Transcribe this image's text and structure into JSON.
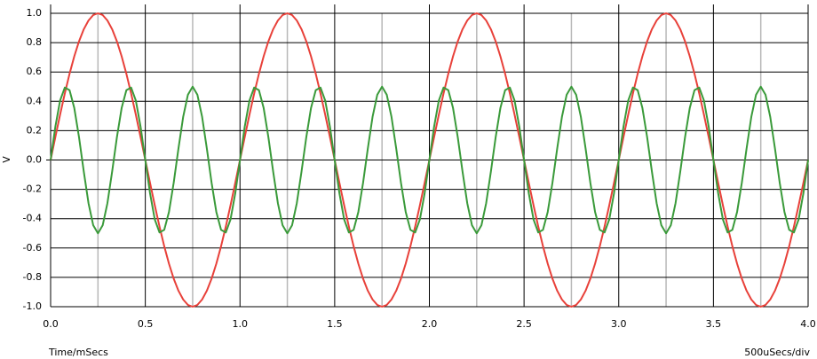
{
  "chart_data": {
    "type": "line",
    "y_label": "V",
    "x_label": "Time/mSecs",
    "x_scale_label": "500uSecs/div",
    "xlim": [
      0,
      4
    ],
    "ylim": [
      -1,
      1
    ],
    "xticks": [
      {
        "value": 0,
        "label": "0.0"
      },
      0.5,
      {
        "value": 1,
        "label": "1.0"
      },
      1.5,
      {
        "value": 2,
        "label": "2.0"
      },
      2.5,
      {
        "value": 3,
        "label": "3.0"
      },
      3.5,
      {
        "value": 4,
        "label": "4.0"
      }
    ],
    "xminorticks": [
      0.25,
      0.75,
      1.25,
      1.75,
      2.25,
      2.75,
      3.25,
      3.75
    ],
    "yticks": [
      {
        "value": -1,
        "label": "-1.0"
      },
      -0.8,
      -0.6,
      -0.4,
      -0.2,
      {
        "value": 0,
        "label": "0.0"
      },
      0.2,
      0.4,
      0.6,
      0.8,
      {
        "value": 1,
        "label": "1.0"
      }
    ],
    "grid": true,
    "x": [
      0,
      0.025,
      0.05,
      0.075,
      0.1,
      0.125,
      0.15,
      0.175,
      0.2,
      0.225,
      0.25,
      0.275,
      0.3,
      0.325,
      0.35,
      0.375,
      0.4,
      0.425,
      0.45,
      0.475,
      0.5,
      0.525,
      0.55,
      0.575,
      0.6,
      0.625,
      0.65,
      0.675,
      0.7,
      0.725,
      0.75,
      0.775,
      0.8,
      0.825,
      0.85,
      0.875,
      0.9,
      0.925,
      0.95,
      0.975,
      1,
      1.025,
      1.05,
      1.075,
      1.1,
      1.125,
      1.15,
      1.175,
      1.2,
      1.225,
      1.25,
      1.275,
      1.3,
      1.325,
      1.35,
      1.375,
      1.4,
      1.425,
      1.45,
      1.475,
      1.5,
      1.525,
      1.55,
      1.575,
      1.6,
      1.625,
      1.65,
      1.675,
      1.7,
      1.725,
      1.75,
      1.775,
      1.8,
      1.825,
      1.85,
      1.875,
      1.9,
      1.925,
      1.95,
      1.975,
      2,
      2.025,
      2.05,
      2.075,
      2.1,
      2.125,
      2.15,
      2.175,
      2.2,
      2.225,
      2.25,
      2.275,
      2.3,
      2.325,
      2.35,
      2.375,
      2.4,
      2.425,
      2.45,
      2.475,
      2.5,
      2.525,
      2.55,
      2.575,
      2.6,
      2.625,
      2.65,
      2.675,
      2.7,
      2.725,
      2.75,
      2.775,
      2.8,
      2.825,
      2.85,
      2.875,
      2.9,
      2.925,
      2.95,
      2.975,
      3,
      3.025,
      3.05,
      3.075,
      3.1,
      3.125,
      3.15,
      3.175,
      3.2,
      3.225,
      3.25,
      3.275,
      3.3,
      3.325,
      3.35,
      3.375,
      3.4,
      3.425,
      3.45,
      3.475,
      3.5,
      3.525,
      3.55,
      3.575,
      3.6,
      3.625,
      3.65,
      3.675,
      3.7,
      3.725,
      3.75,
      3.775,
      3.8,
      3.825,
      3.85,
      3.875,
      3.9,
      3.925,
      3.95,
      3.975,
      4
    ],
    "series": [
      {
        "color": "#e8413a",
        "values": [
          0,
          0.156,
          0.309,
          0.454,
          0.588,
          0.707,
          0.809,
          0.891,
          0.951,
          0.988,
          1,
          0.988,
          0.951,
          0.891,
          0.809,
          0.707,
          0.588,
          0.454,
          0.309,
          0.156,
          0,
          -0.156,
          -0.309,
          -0.454,
          -0.588,
          -0.707,
          -0.809,
          -0.891,
          -0.951,
          -0.988,
          -1,
          -0.988,
          -0.951,
          -0.891,
          -0.809,
          -0.707,
          -0.588,
          -0.454,
          -0.309,
          -0.156,
          0,
          0.156,
          0.309,
          0.454,
          0.588,
          0.707,
          0.809,
          0.891,
          0.951,
          0.988,
          1,
          0.988,
          0.951,
          0.891,
          0.809,
          0.707,
          0.588,
          0.454,
          0.309,
          0.156,
          0,
          -0.156,
          -0.309,
          -0.454,
          -0.588,
          -0.707,
          -0.809,
          -0.891,
          -0.951,
          -0.988,
          -1,
          -0.988,
          -0.951,
          -0.891,
          -0.809,
          -0.707,
          -0.588,
          -0.454,
          -0.309,
          -0.156,
          0,
          0.156,
          0.309,
          0.454,
          0.588,
          0.707,
          0.809,
          0.891,
          0.951,
          0.988,
          1,
          0.988,
          0.951,
          0.891,
          0.809,
          0.707,
          0.588,
          0.454,
          0.309,
          0.156,
          0,
          -0.156,
          -0.309,
          -0.454,
          -0.588,
          -0.707,
          -0.809,
          -0.891,
          -0.951,
          -0.988,
          -1,
          -0.988,
          -0.951,
          -0.891,
          -0.809,
          -0.707,
          -0.588,
          -0.454,
          -0.309,
          -0.156,
          0,
          0.156,
          0.309,
          0.454,
          0.588,
          0.707,
          0.809,
          0.891,
          0.951,
          0.988,
          1,
          0.988,
          0.951,
          0.891,
          0.809,
          0.707,
          0.588,
          0.454,
          0.309,
          0.156,
          0,
          -0.156,
          -0.309,
          -0.454,
          -0.588,
          -0.707,
          -0.809,
          -0.891,
          -0.951,
          -0.988,
          -1,
          -0.988,
          -0.951,
          -0.891,
          -0.809,
          -0.707,
          -0.588,
          -0.454,
          -0.309,
          -0.156,
          0
        ]
      },
      {
        "color": "#3a9a3a",
        "values": [
          0,
          0.227,
          0.405,
          0.494,
          0.476,
          0.354,
          0.155,
          -0.078,
          -0.294,
          -0.445,
          -0.5,
          -0.445,
          -0.294,
          -0.078,
          0.155,
          0.354,
          0.476,
          0.494,
          0.405,
          0.227,
          0,
          -0.227,
          -0.405,
          -0.494,
          -0.476,
          -0.354,
          -0.155,
          0.078,
          0.294,
          0.445,
          0.5,
          0.445,
          0.294,
          0.078,
          -0.155,
          -0.354,
          -0.476,
          -0.494,
          -0.405,
          -0.227,
          0,
          0.227,
          0.405,
          0.494,
          0.476,
          0.354,
          0.155,
          -0.078,
          -0.294,
          -0.445,
          -0.5,
          -0.445,
          -0.294,
          -0.078,
          0.155,
          0.354,
          0.476,
          0.494,
          0.405,
          0.227,
          0,
          -0.227,
          -0.405,
          -0.494,
          -0.476,
          -0.354,
          -0.155,
          0.078,
          0.294,
          0.445,
          0.5,
          0.445,
          0.294,
          0.078,
          -0.155,
          -0.354,
          -0.476,
          -0.494,
          -0.405,
          -0.227,
          0,
          0.227,
          0.405,
          0.494,
          0.476,
          0.354,
          0.155,
          -0.078,
          -0.294,
          -0.445,
          -0.5,
          -0.445,
          -0.294,
          -0.078,
          0.155,
          0.354,
          0.476,
          0.494,
          0.405,
          0.227,
          0,
          -0.227,
          -0.405,
          -0.494,
          -0.476,
          -0.354,
          -0.155,
          0.078,
          0.294,
          0.445,
          0.5,
          0.445,
          0.294,
          0.078,
          -0.155,
          -0.354,
          -0.476,
          -0.494,
          -0.405,
          -0.227,
          0,
          0.227,
          0.405,
          0.494,
          0.476,
          0.354,
          0.155,
          -0.078,
          -0.294,
          -0.445,
          -0.5,
          -0.445,
          -0.294,
          -0.078,
          0.155,
          0.354,
          0.476,
          0.494,
          0.405,
          0.227,
          0,
          -0.227,
          -0.405,
          -0.494,
          -0.476,
          -0.354,
          -0.155,
          0.078,
          0.294,
          0.445,
          0.5,
          0.445,
          0.294,
          0.078,
          -0.155,
          -0.354,
          -0.476,
          -0.494,
          -0.405,
          -0.227,
          0
        ]
      }
    ]
  }
}
